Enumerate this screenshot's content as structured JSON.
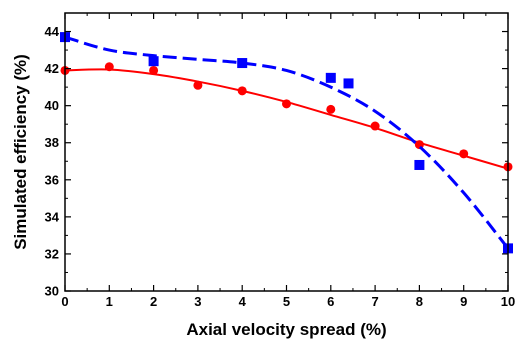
{
  "chart_data": {
    "type": "scatter",
    "xlabel": "Axial velocity spread (%)",
    "ylabel": "Simulated efficiency (%)",
    "xlim": [
      0,
      10
    ],
    "ylim": [
      30,
      45
    ],
    "xticks": [
      "0",
      "1",
      "2",
      "3",
      "4",
      "5",
      "6",
      "7",
      "8",
      "9",
      "10"
    ],
    "yticks": [
      "30",
      "32",
      "34",
      "36",
      "38",
      "40",
      "42",
      "44"
    ],
    "grid": false,
    "legend": "none",
    "series": [
      {
        "marker": "circle",
        "color": "#ff0000",
        "line_style": "solid",
        "points": [
          [
            0,
            41.9
          ],
          [
            1,
            42.1
          ],
          [
            2,
            41.9
          ],
          [
            3,
            41.1
          ],
          [
            4,
            40.8
          ],
          [
            5,
            40.1
          ],
          [
            6,
            39.8
          ],
          [
            7,
            38.9
          ],
          [
            8,
            37.9
          ],
          [
            9,
            37.4
          ],
          [
            10,
            36.7
          ]
        ],
        "fit": [
          [
            0,
            41.9
          ],
          [
            1,
            41.95
          ],
          [
            2,
            41.7
          ],
          [
            3,
            41.3
          ],
          [
            4,
            40.8
          ],
          [
            5,
            40.2
          ],
          [
            6,
            39.5
          ],
          [
            7,
            38.8
          ],
          [
            8,
            38.0
          ],
          [
            9,
            37.3
          ],
          [
            10,
            36.6
          ]
        ]
      },
      {
        "marker": "square",
        "color": "#0000ff",
        "line_style": "dashed",
        "points": [
          [
            0,
            43.7
          ],
          [
            2,
            42.4
          ],
          [
            4,
            42.3
          ],
          [
            6,
            41.5
          ],
          [
            6.4,
            41.2
          ],
          [
            8,
            36.8
          ],
          [
            10,
            32.3
          ]
        ],
        "fit": [
          [
            0,
            43.7
          ],
          [
            1,
            43.0
          ],
          [
            2,
            42.7
          ],
          [
            3,
            42.5
          ],
          [
            4,
            42.3
          ],
          [
            5,
            41.9
          ],
          [
            6,
            41.0
          ],
          [
            7,
            39.7
          ],
          [
            8,
            37.8
          ],
          [
            9,
            35.3
          ],
          [
            10,
            32.3
          ]
        ]
      }
    ]
  }
}
